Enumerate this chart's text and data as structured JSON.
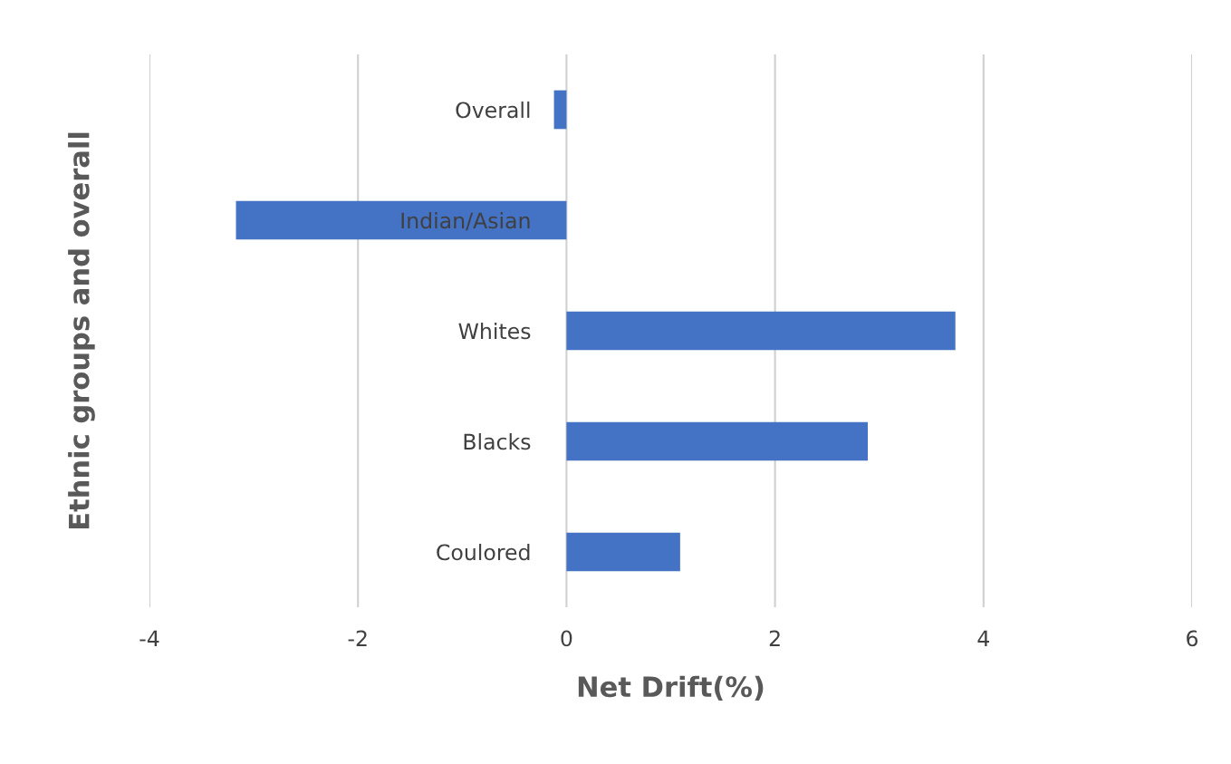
{
  "chart_data": {
    "type": "bar",
    "orientation": "horizontal",
    "xlabel": "Net Drift(%)",
    "ylabel": "Ethnic groups and overall",
    "categories": [
      "Overall",
      "Indian/Asian",
      "Whites",
      "Blacks",
      "Coulored"
    ],
    "values": [
      -0.12,
      -3.17,
      3.73,
      2.89,
      1.09
    ],
    "color": "#4472c4",
    "xlim": [
      -4,
      6
    ],
    "xticks": [
      -4,
      -2,
      0,
      2,
      4,
      6
    ],
    "grid": "x"
  }
}
